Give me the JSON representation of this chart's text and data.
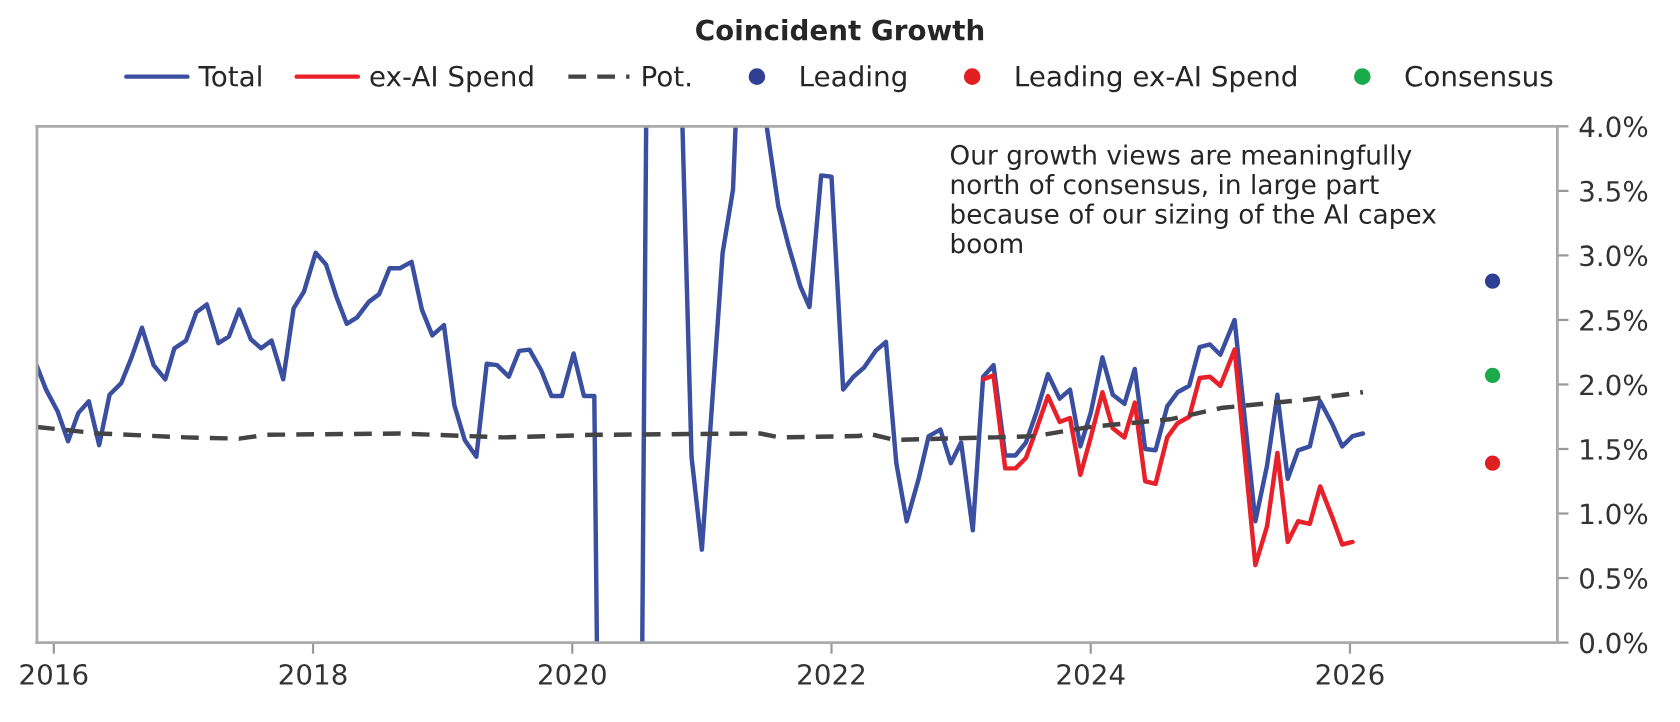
{
  "chart_data": {
    "type": "line",
    "title": "Coincident Growth",
    "annotations": [
      "Our growth views are meaningfully north of consensus, in large part because of our sizing of the AI capex boom"
    ],
    "xlim": [
      2015.87,
      2027.6
    ],
    "xticks": [
      2016,
      2018,
      2020,
      2022,
      2024,
      2026
    ],
    "ylim": [
      0,
      4
    ],
    "yticks": [
      {
        "value": 0,
        "label": "0.0%"
      },
      {
        "value": 0.5,
        "label": "0.5%"
      },
      {
        "value": 1,
        "label": "1.0%"
      },
      {
        "value": 1.5,
        "label": "1.5%"
      },
      {
        "value": 2,
        "label": "2.0%"
      },
      {
        "value": 2.5,
        "label": "2.5%"
      },
      {
        "value": 3,
        "label": "3.0%"
      },
      {
        "value": 3.5,
        "label": "3.5%"
      },
      {
        "value": 4,
        "label": "4.0%"
      }
    ],
    "grid": false,
    "legend": "top",
    "series": [
      {
        "name": "Total",
        "line_style": "solid",
        "color": "#3a4fa0",
        "x": [
          2015.87,
          2015.94,
          2016.03,
          2016.11,
          2016.19,
          2016.27,
          2016.35,
          2016.43,
          2016.52,
          2016.6,
          2016.68,
          2016.77,
          2016.86,
          2016.93,
          2017.02,
          2017.1,
          2017.18,
          2017.27,
          2017.35,
          2017.43,
          2017.52,
          2017.6,
          2017.68,
          2017.77,
          2017.85,
          2017.93,
          2018.02,
          2018.1,
          2018.18,
          2018.26,
          2018.34,
          2018.43,
          2018.51,
          2018.59,
          2018.67,
          2018.76,
          2018.84,
          2018.92,
          2019.01,
          2019.09,
          2019.17,
          2019.26,
          2019.34,
          2019.42,
          2019.51,
          2019.59,
          2019.67,
          2019.76,
          2019.84,
          2019.92,
          2020.01,
          2020.09,
          2020.17,
          2020.19,
          2020.3,
          2020.54,
          2020.57,
          2020.7,
          2020.85,
          2020.92,
          2021.0,
          2021.16,
          2021.24,
          2021.26,
          2021.38,
          2021.5,
          2021.59,
          2021.67,
          2021.76,
          2021.83,
          2021.92,
          2022.0,
          2022.09,
          2022.17,
          2022.25,
          2022.34,
          2022.42,
          2022.5,
          2022.58,
          2022.67,
          2022.75,
          2022.84,
          2022.92,
          2023.0,
          2023.09,
          2023.17,
          2023.25,
          2023.34,
          2023.42,
          2023.5,
          2023.58,
          2023.67,
          2023.76,
          2023.84,
          2023.92,
          2024.0,
          2024.09,
          2024.17,
          2024.26,
          2024.34,
          2024.42,
          2024.5,
          2024.59,
          2024.67,
          2024.76,
          2024.84,
          2024.92,
          2025.0,
          2025.11,
          2025.27,
          2025.36,
          2025.44,
          2025.52,
          2025.6,
          2025.69,
          2025.77,
          2025.86,
          2025.94,
          2026.02,
          2026.1
        ],
        "values": [
          2.14,
          1.96,
          1.79,
          1.56,
          1.78,
          1.87,
          1.53,
          1.92,
          2.01,
          2.21,
          2.44,
          2.15,
          2.04,
          2.28,
          2.34,
          2.56,
          2.62,
          2.32,
          2.37,
          2.58,
          2.35,
          2.28,
          2.34,
          2.04,
          2.59,
          2.72,
          3.02,
          2.93,
          2.68,
          2.47,
          2.52,
          2.64,
          2.7,
          2.9,
          2.9,
          2.95,
          2.58,
          2.38,
          2.46,
          1.84,
          1.57,
          1.44,
          2.16,
          2.15,
          2.06,
          2.26,
          2.27,
          2.11,
          1.91,
          1.91,
          2.24,
          1.91,
          1.91,
          0,
          null,
          0,
          4,
          null,
          4,
          1.44,
          0.72,
          3.02,
          3.51,
          4,
          null,
          4,
          3.38,
          3.07,
          2.76,
          2.6,
          3.62,
          3.61,
          1.96,
          2.06,
          2.13,
          2.26,
          2.33,
          1.39,
          0.94,
          1.26,
          1.6,
          1.65,
          1.39,
          1.55,
          0.87,
          2.06,
          2.15,
          1.45,
          1.45,
          1.55,
          1.78,
          2.08,
          1.89,
          1.96,
          1.52,
          1.78,
          2.21,
          1.92,
          1.85,
          2.12,
          1.5,
          1.49,
          1.83,
          1.94,
          1.99,
          2.29,
          2.31,
          2.23,
          2.5,
          0.94,
          1.37,
          1.92,
          1.27,
          1.49,
          1.52,
          1.87,
          1.7,
          1.52,
          1.6,
          1.62
        ]
      },
      {
        "name": "ex-AI Spend",
        "line_style": "solid",
        "color": "#e8202a",
        "x": [
          2023.17,
          2023.25,
          2023.34,
          2023.42,
          2023.5,
          2023.58,
          2023.67,
          2023.76,
          2023.84,
          2023.92,
          2024.0,
          2024.09,
          2024.17,
          2024.26,
          2024.34,
          2024.42,
          2024.5,
          2024.59,
          2024.67,
          2024.76,
          2024.84,
          2024.92,
          2025.0,
          2025.11,
          2025.27,
          2025.36,
          2025.44,
          2025.52,
          2025.6,
          2025.69,
          2025.77,
          2025.86,
          2025.94,
          2026.02
        ],
        "values": [
          2.04,
          2.07,
          1.35,
          1.35,
          1.43,
          1.65,
          1.91,
          1.71,
          1.74,
          1.3,
          1.59,
          1.94,
          1.66,
          1.59,
          1.86,
          1.25,
          1.23,
          1.59,
          1.7,
          1.75,
          2.05,
          2.06,
          1.99,
          2.27,
          0.6,
          0.9,
          1.47,
          0.78,
          0.94,
          0.92,
          1.21,
          0.98,
          0.76,
          0.78
        ]
      },
      {
        "name": "Pot.",
        "line_style": "dashed",
        "color": "#444444",
        "x": [
          2015.87,
          2016.35,
          2017.02,
          2017.43,
          2017.64,
          2018.66,
          2019.47,
          2020.18,
          2021.45,
          2021.6,
          2022.21,
          2022.28,
          2022.49,
          2023.26,
          2023.57,
          2023.99,
          2024.61,
          2025.02,
          2025.64,
          2026.1
        ],
        "values": [
          1.67,
          1.62,
          1.59,
          1.58,
          1.61,
          1.62,
          1.59,
          1.61,
          1.62,
          1.59,
          1.6,
          1.62,
          1.57,
          1.59,
          1.6,
          1.67,
          1.73,
          1.82,
          1.88,
          1.94
        ]
      },
      {
        "name": "Leading",
        "type": "scatter",
        "marker": "circle",
        "color": "#2e3f94",
        "x": [
          2027.1
        ],
        "values": [
          2.8
        ]
      },
      {
        "name": "Leading ex-AI Spend",
        "type": "scatter",
        "marker": "circle",
        "color": "#e02020",
        "x": [
          2027.1
        ],
        "values": [
          1.39
        ]
      },
      {
        "name": "Consensus",
        "type": "scatter",
        "marker": "circle",
        "color": "#1aaa4a",
        "x": [
          2027.1
        ],
        "values": [
          2.07
        ]
      }
    ]
  }
}
